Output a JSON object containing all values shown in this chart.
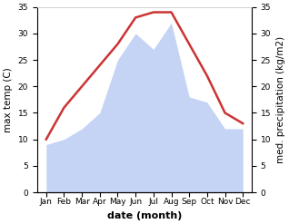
{
  "months": [
    "Jan",
    "Feb",
    "Mar",
    "Apr",
    "May",
    "Jun",
    "Jul",
    "Aug",
    "Sep",
    "Oct",
    "Nov",
    "Dec"
  ],
  "temperature": [
    10,
    16,
    20,
    24,
    28,
    33,
    34,
    34,
    28,
    22,
    15,
    13
  ],
  "precipitation": [
    9,
    10,
    12,
    15,
    25,
    30,
    27,
    32,
    18,
    17,
    12,
    12
  ],
  "temp_color": "#cc3333",
  "precip_fill_color": "#c5d4f5",
  "background_color": "#ffffff",
  "xlabel": "date (month)",
  "ylabel_left": "max temp (C)",
  "ylabel_right": "med. precipitation (kg/m2)",
  "ylim": [
    0,
    35
  ],
  "yticks": [
    0,
    5,
    10,
    15,
    20,
    25,
    30,
    35
  ],
  "temp_linewidth": 1.8,
  "xlabel_fontsize": 8,
  "ylabel_fontsize": 7.5,
  "tick_fontsize": 6.5
}
